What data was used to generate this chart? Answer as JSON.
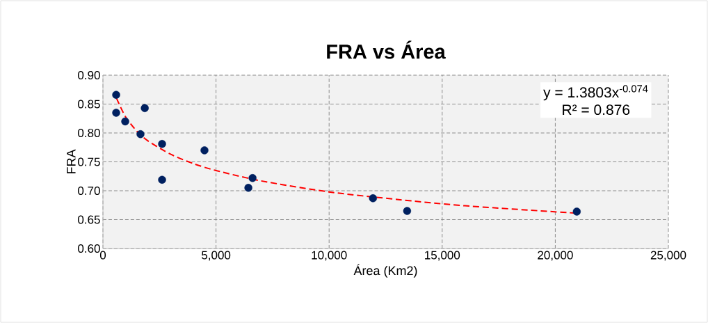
{
  "chart_data": {
    "type": "scatter",
    "title": "FRA vs Área",
    "xlabel": "Área (Km2)",
    "ylabel": "FRA",
    "x": [
      585,
      585,
      985,
      1660,
      1850,
      2615,
      2615,
      4490,
      6430,
      6615,
      11940,
      13450,
      20950
    ],
    "series": [
      {
        "color": "#002060",
        "marker": "circle",
        "values": [
          0.866,
          0.835,
          0.82,
          0.798,
          0.843,
          0.781,
          0.719,
          0.77,
          0.705,
          0.722,
          0.687,
          0.665,
          0.664
        ]
      },
      {
        "type": "line",
        "color": "#ff0000",
        "marker": "none",
        "line_style": "dashed",
        "x": [
          600,
          1000,
          1500,
          2000,
          3000,
          4000,
          5000,
          7000,
          10000,
          13000,
          16000,
          21000
        ],
        "values": [
          0.86,
          0.828,
          0.803,
          0.786,
          0.763,
          0.747,
          0.735,
          0.717,
          0.698,
          0.685,
          0.674,
          0.661
        ]
      }
    ],
    "xlim": [
      0,
      25000
    ],
    "xticks": [
      0,
      {
        "value": 5000,
        "label": "5,000"
      },
      {
        "value": 10000,
        "label": "10,000"
      },
      {
        "value": 15000,
        "label": "15,000"
      },
      {
        "value": 20000,
        "label": "20,000"
      },
      {
        "value": 25000,
        "label": "25,000"
      }
    ],
    "ylim": [
      0.6,
      0.9
    ],
    "yticks": [
      {
        "value": 0.6,
        "label": "0.60"
      },
      {
        "value": 0.65,
        "label": "0.65"
      },
      {
        "value": 0.7,
        "label": "0.70"
      },
      {
        "value": 0.75,
        "label": "0.75"
      },
      {
        "value": 0.8,
        "label": "0.80"
      },
      {
        "value": 0.85,
        "label": "0.85"
      },
      {
        "value": 0.9,
        "label": "0.90"
      }
    ],
    "annotations": [
      "y = 1.3803x$^{-0.074}$",
      "R² = 0.876"
    ],
    "grid": true
  }
}
